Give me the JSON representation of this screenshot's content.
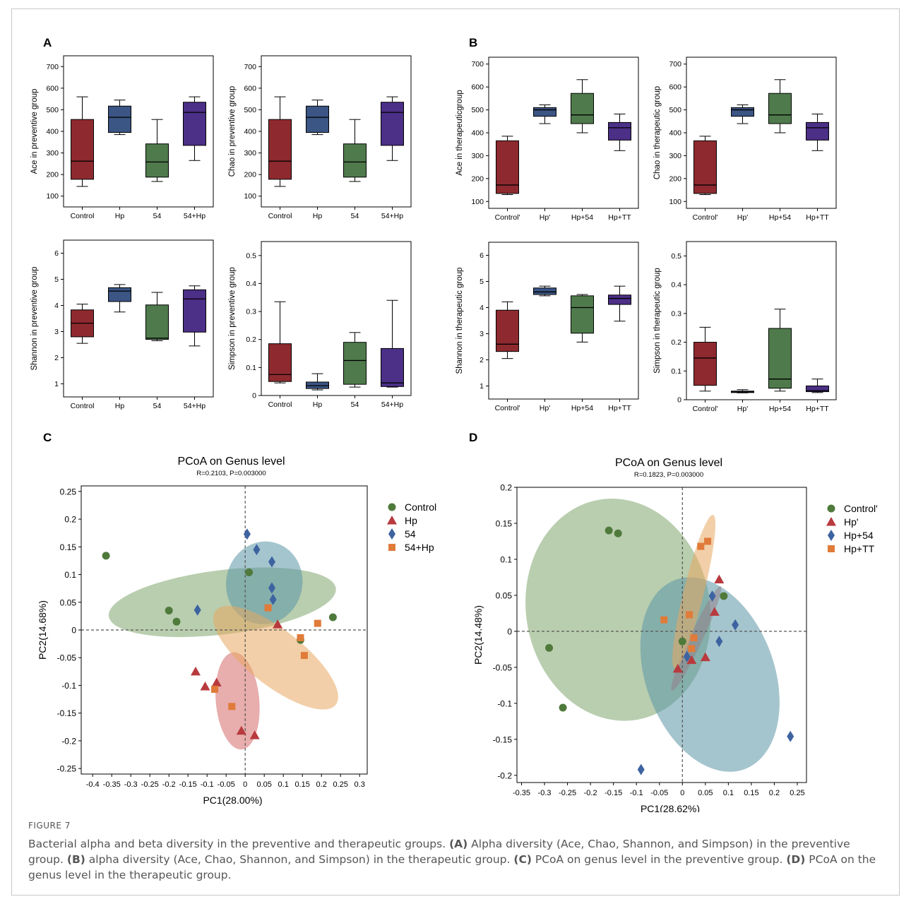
{
  "figure": {
    "label": "FIGURE 7",
    "caption_parts": [
      {
        "t": "Bacterial alpha and beta diversity in the preventive and therapeutic groups. "
      },
      {
        "b": "(A)"
      },
      {
        "t": " Alpha diversity (Ace, Chao, Shannon, and Simpson) in the preventive group. "
      },
      {
        "b": "(B)"
      },
      {
        "t": " alpha diversity (Ace, Chao, Shannon, and Simpson) in the therapeutic group. "
      },
      {
        "b": "(C)"
      },
      {
        "t": " PCoA on genus level in the preventive group. "
      },
      {
        "b": "(D)"
      },
      {
        "t": " PCoA on the genus level in the therapeutic group."
      }
    ]
  },
  "colors": {
    "red": "#8E2A2F",
    "blue": "#3B5584",
    "green": "#4F7B4C",
    "purple": "#4C2F87",
    "pt_green": "#4F7A3C",
    "pt_red": "#B83A3E",
    "pt_blue": "#3D63A0",
    "pt_orange": "#E07B3A",
    "el_green": "#7FA56E",
    "el_blue": "#5B96A6",
    "el_red": "#D56A6A",
    "el_orange": "#E8A860"
  },
  "chart_data": [
    {
      "id": "A1",
      "panel": "A",
      "type": "box",
      "ylabel": "Ace in preventive group",
      "ylim": [
        50,
        750
      ],
      "yticks": [
        100,
        200,
        300,
        400,
        500,
        600,
        700
      ],
      "categories": [
        "Control",
        "Hp",
        "54",
        "54+Hp"
      ],
      "boxes": [
        {
          "min": 145,
          "q1": 178,
          "median": 262,
          "q3": 455,
          "max": 560,
          "color": "red"
        },
        {
          "min": 385,
          "q1": 395,
          "median": 465,
          "q3": 517,
          "max": 545,
          "color": "blue"
        },
        {
          "min": 168,
          "q1": 188,
          "median": 258,
          "q3": 342,
          "max": 455,
          "color": "green"
        },
        {
          "min": 265,
          "q1": 335,
          "median": 488,
          "q3": 535,
          "max": 560,
          "color": "purple"
        }
      ]
    },
    {
      "id": "A2",
      "panel": "A",
      "type": "box",
      "ylabel": "Chao in preventive group",
      "ylim": [
        50,
        750
      ],
      "yticks": [
        100,
        200,
        300,
        400,
        500,
        600,
        700
      ],
      "categories": [
        "Control",
        "Hp",
        "54",
        "54+Hp"
      ],
      "boxes": [
        {
          "min": 145,
          "q1": 178,
          "median": 262,
          "q3": 455,
          "max": 560,
          "color": "red"
        },
        {
          "min": 385,
          "q1": 395,
          "median": 465,
          "q3": 517,
          "max": 545,
          "color": "blue"
        },
        {
          "min": 168,
          "q1": 188,
          "median": 258,
          "q3": 342,
          "max": 455,
          "color": "green"
        },
        {
          "min": 265,
          "q1": 335,
          "median": 488,
          "q3": 535,
          "max": 560,
          "color": "purple"
        }
      ]
    },
    {
      "id": "B1",
      "panel": "B",
      "type": "box",
      "ylabel": "Ace in therapeuticgroup",
      "ylim": [
        70,
        730
      ],
      "yticks": [
        100,
        200,
        300,
        400,
        500,
        600,
        700
      ],
      "categories": [
        "Control'",
        "Hp'",
        "Hp+54",
        "Hp+TT"
      ],
      "boxes": [
        {
          "min": 130,
          "q1": 135,
          "median": 172,
          "q3": 365,
          "max": 385,
          "color": "red"
        },
        {
          "min": 440,
          "q1": 472,
          "median": 500,
          "q3": 510,
          "max": 522,
          "color": "blue"
        },
        {
          "min": 400,
          "q1": 440,
          "median": 478,
          "q3": 572,
          "max": 632,
          "color": "green"
        },
        {
          "min": 322,
          "q1": 368,
          "median": 422,
          "q3": 445,
          "max": 482,
          "color": "purple"
        }
      ]
    },
    {
      "id": "B2",
      "panel": "B",
      "type": "box",
      "ylabel": "Chao in therapeutic group",
      "ylim": [
        70,
        730
      ],
      "yticks": [
        100,
        200,
        300,
        400,
        500,
        600,
        700
      ],
      "categories": [
        "Control'",
        "Hp'",
        "Hp+54",
        "Hp+TT"
      ],
      "boxes": [
        {
          "min": 130,
          "q1": 135,
          "median": 172,
          "q3": 365,
          "max": 385,
          "color": "red"
        },
        {
          "min": 440,
          "q1": 472,
          "median": 500,
          "q3": 510,
          "max": 522,
          "color": "blue"
        },
        {
          "min": 400,
          "q1": 440,
          "median": 478,
          "q3": 572,
          "max": 632,
          "color": "green"
        },
        {
          "min": 322,
          "q1": 368,
          "median": 422,
          "q3": 445,
          "max": 482,
          "color": "purple"
        }
      ]
    },
    {
      "id": "A3",
      "panel": "A",
      "type": "box",
      "ylabel": "Shannon in preventive group",
      "ylim": [
        0.5,
        6.5
      ],
      "yticks": [
        1,
        2,
        3,
        4,
        5,
        6
      ],
      "categories": [
        "Control",
        "Hp",
        "54",
        "54+Hp"
      ],
      "boxes": [
        {
          "min": 2.55,
          "q1": 2.8,
          "median": 3.32,
          "q3": 3.83,
          "max": 4.05,
          "color": "red"
        },
        {
          "min": 3.75,
          "q1": 4.15,
          "median": 4.55,
          "q3": 4.68,
          "max": 4.8,
          "color": "blue"
        },
        {
          "min": 2.65,
          "q1": 2.7,
          "median": 2.75,
          "q3": 4.02,
          "max": 4.5,
          "color": "green"
        },
        {
          "min": 2.45,
          "q1": 2.98,
          "median": 4.25,
          "q3": 4.6,
          "max": 4.75,
          "color": "purple"
        }
      ]
    },
    {
      "id": "A4",
      "panel": "A",
      "type": "box",
      "ylabel": "Simpson in preventive group",
      "ylim": [
        0,
        0.55
      ],
      "yticks": [
        0.0,
        0.1,
        0.2,
        0.3,
        0.4,
        0.5
      ],
      "categories": [
        "Control",
        "Hp",
        "54",
        "54+Hp"
      ],
      "boxes": [
        {
          "min": 0.045,
          "q1": 0.05,
          "median": 0.075,
          "q3": 0.185,
          "max": 0.335,
          "color": "red"
        },
        {
          "min": 0.02,
          "q1": 0.025,
          "median": 0.035,
          "q3": 0.048,
          "max": 0.078,
          "color": "blue"
        },
        {
          "min": 0.03,
          "q1": 0.04,
          "median": 0.125,
          "q3": 0.19,
          "max": 0.225,
          "color": "green"
        },
        {
          "min": 0.03,
          "q1": 0.032,
          "median": 0.045,
          "q3": 0.168,
          "max": 0.34,
          "color": "purple"
        }
      ]
    },
    {
      "id": "B3",
      "panel": "B",
      "type": "box",
      "ylabel": "Shannon in therapeutic group",
      "ylim": [
        0.5,
        6.5
      ],
      "yticks": [
        1,
        2,
        3,
        4,
        5,
        6
      ],
      "categories": [
        "Control'",
        "Hp'",
        "Hp+54",
        "Hp+TT"
      ],
      "boxes": [
        {
          "min": 2.05,
          "q1": 2.32,
          "median": 2.6,
          "q3": 3.9,
          "max": 4.22,
          "color": "red"
        },
        {
          "min": 4.45,
          "q1": 4.5,
          "median": 4.6,
          "q3": 4.75,
          "max": 4.82,
          "color": "blue"
        },
        {
          "min": 2.68,
          "q1": 3.02,
          "median": 4.0,
          "q3": 4.45,
          "max": 4.5,
          "color": "green"
        },
        {
          "min": 3.48,
          "q1": 4.12,
          "median": 4.35,
          "q3": 4.48,
          "max": 4.82,
          "color": "purple"
        }
      ]
    },
    {
      "id": "B4",
      "panel": "B",
      "type": "box",
      "ylabel": "Simpson in therapeutic group",
      "ylim": [
        0,
        0.55
      ],
      "yticks": [
        0.0,
        0.1,
        0.2,
        0.3,
        0.4,
        0.5
      ],
      "categories": [
        "Control'",
        "Hp'",
        "Hp+54",
        "Hp+TT"
      ],
      "boxes": [
        {
          "min": 0.03,
          "q1": 0.05,
          "median": 0.145,
          "q3": 0.2,
          "max": 0.252,
          "color": "red"
        },
        {
          "min": 0.024,
          "q1": 0.025,
          "median": 0.027,
          "q3": 0.03,
          "max": 0.035,
          "color": "blue"
        },
        {
          "min": 0.03,
          "q1": 0.04,
          "median": 0.072,
          "q3": 0.248,
          "max": 0.315,
          "color": "green"
        },
        {
          "min": 0.025,
          "q1": 0.028,
          "median": 0.032,
          "q3": 0.048,
          "max": 0.072,
          "color": "purple"
        }
      ]
    },
    {
      "id": "C",
      "panel": "C",
      "type": "scatter",
      "title": "PCoA on Genus level",
      "subtitle": "R=0.2103, P=0.003000",
      "xlabel": "PC1(28.00%)",
      "ylabel": "PC2(14.68%)",
      "xlim": [
        -0.43,
        0.32
      ],
      "ylim": [
        -0.26,
        0.26
      ],
      "xticks": [
        -0.4,
        -0.35,
        -0.3,
        -0.25,
        -0.2,
        -0.15,
        -0.1,
        -0.05,
        0,
        0.05,
        0.1,
        0.15,
        0.2,
        0.25,
        0.3
      ],
      "yticks": [
        0.25,
        0.2,
        0.15,
        0.1,
        0.05,
        0,
        -0.05,
        -0.1,
        -0.15,
        -0.2,
        -0.25
      ],
      "legend_position": "right",
      "series": [
        {
          "name": "Control",
          "marker": "circle",
          "color": "pt_green",
          "ellipse": {
            "cx": -0.06,
            "cy": 0.05,
            "rx": 0.3,
            "ry": 0.058,
            "angle": -7,
            "color": "el_green"
          },
          "points": [
            [
              -0.365,
              0.134
            ],
            [
              -0.2,
              0.035
            ],
            [
              -0.18,
              0.015
            ],
            [
              0.01,
              0.104
            ],
            [
              0.145,
              -0.018
            ],
            [
              0.23,
              0.023
            ]
          ]
        },
        {
          "name": "Hp",
          "marker": "triangle",
          "color": "pt_red",
          "ellipse": {
            "cx": -0.02,
            "cy": -0.128,
            "rx": 0.057,
            "ry": 0.088,
            "angle": -5,
            "color": "el_red"
          },
          "points": [
            [
              -0.13,
              -0.075
            ],
            [
              -0.105,
              -0.102
            ],
            [
              -0.075,
              -0.095
            ],
            [
              0.085,
              0.01
            ],
            [
              -0.01,
              -0.182
            ],
            [
              0.025,
              -0.19
            ]
          ]
        },
        {
          "name": "54",
          "marker": "diamond",
          "color": "pt_blue",
          "ellipse": {
            "cx": 0.05,
            "cy": 0.085,
            "rx": 0.1,
            "ry": 0.075,
            "angle": 12,
            "color": "el_blue"
          },
          "points": [
            [
              0.005,
              0.173
            ],
            [
              0.03,
              0.145
            ],
            [
              0.07,
              0.123
            ],
            [
              0.07,
              0.076
            ],
            [
              0.073,
              0.055
            ],
            [
              -0.125,
              0.036
            ]
          ]
        },
        {
          "name": "54+Hp",
          "marker": "square",
          "color": "pt_orange",
          "ellipse": {
            "cx": 0.08,
            "cy": -0.05,
            "rx": 0.2,
            "ry": 0.05,
            "angle": 38,
            "color": "el_orange"
          },
          "points": [
            [
              0.06,
              0.04
            ],
            [
              0.19,
              0.012
            ],
            [
              0.145,
              -0.014
            ],
            [
              0.155,
              -0.046
            ],
            [
              -0.08,
              -0.107
            ],
            [
              -0.035,
              -0.138
            ]
          ]
        }
      ]
    },
    {
      "id": "D",
      "panel": "D",
      "type": "scatter",
      "title": "PCoA on Genus level",
      "subtitle": "R=0.1823, P=0.003000",
      "xlabel": "PC1(28.62%)",
      "ylabel": "PC2(14.48%)",
      "xlim": [
        -0.36,
        0.27
      ],
      "ylim": [
        -0.21,
        0.2
      ],
      "xticks": [
        -0.35,
        -0.3,
        -0.25,
        -0.2,
        -0.15,
        -0.1,
        -0.05,
        0,
        0.05,
        0.1,
        0.15,
        0.2,
        0.25
      ],
      "yticks": [
        0.2,
        0.15,
        0.1,
        0.05,
        0,
        -0.05,
        -0.1,
        -0.15,
        -0.2
      ],
      "legend_position": "right",
      "series": [
        {
          "name": "Control'",
          "marker": "circle",
          "color": "pt_green",
          "ellipse": {
            "cx": -0.14,
            "cy": 0.03,
            "rx": 0.2,
            "ry": 0.155,
            "angle": -10,
            "color": "el_green"
          },
          "points": [
            [
              -0.29,
              -0.023
            ],
            [
              -0.26,
              -0.106
            ],
            [
              -0.16,
              0.14
            ],
            [
              -0.14,
              0.136
            ],
            [
              0.0,
              -0.014
            ],
            [
              0.09,
              0.049
            ]
          ]
        },
        {
          "name": "Hp'",
          "marker": "triangle",
          "color": "pt_red",
          "ellipse": {
            "cx": 0.03,
            "cy": -0.01,
            "rx": 0.014,
            "ry": 0.08,
            "angle": 25,
            "color": "el_red"
          },
          "points": [
            [
              -0.01,
              -0.052
            ],
            [
              0.02,
              -0.04
            ],
            [
              0.05,
              -0.036
            ],
            [
              0.07,
              0.027
            ],
            [
              0.08,
              0.072
            ]
          ]
        },
        {
          "name": "Hp+54",
          "marker": "diamond",
          "color": "pt_blue",
          "ellipse": {
            "cx": 0.06,
            "cy": -0.06,
            "rx": 0.14,
            "ry": 0.14,
            "angle": -20,
            "color": "el_blue"
          },
          "points": [
            [
              0.065,
              0.049
            ],
            [
              0.115,
              0.009
            ],
            [
              0.08,
              -0.014
            ],
            [
              0.01,
              -0.035
            ],
            [
              -0.09,
              -0.192
            ],
            [
              0.235,
              -0.146
            ]
          ]
        },
        {
          "name": "Hp+TT",
          "marker": "square",
          "color": "pt_orange",
          "ellipse": {
            "cx": 0.025,
            "cy": 0.055,
            "rx": 0.022,
            "ry": 0.11,
            "angle": 14,
            "color": "el_orange"
          },
          "points": [
            [
              0.04,
              0.118
            ],
            [
              0.055,
              0.125
            ],
            [
              -0.04,
              0.016
            ],
            [
              0.015,
              0.023
            ],
            [
              0.025,
              -0.009
            ],
            [
              0.02,
              -0.024
            ]
          ]
        }
      ]
    }
  ],
  "panel_labels": [
    "A",
    "B",
    "C",
    "D"
  ]
}
